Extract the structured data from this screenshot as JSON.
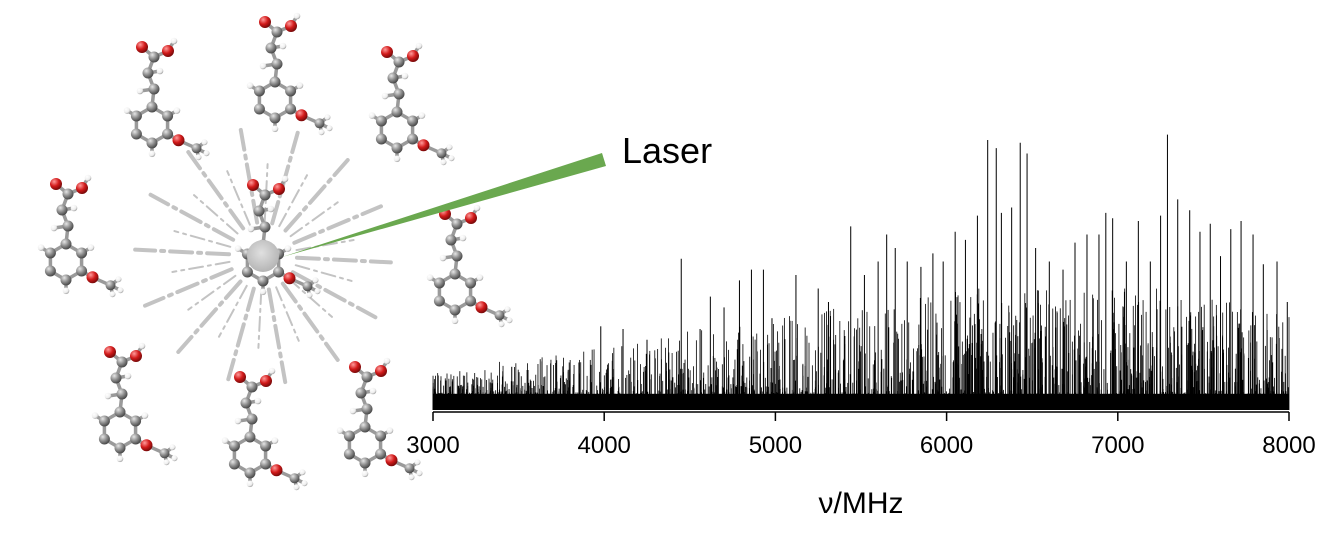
{
  "annotation": {
    "laser_label": "Laser"
  },
  "colors": {
    "carbon": "#8c8c8c",
    "hydrogen": "#f2f2f2",
    "oxygen": "#d21a1a",
    "laser_beam": "#6aa84f",
    "plume": "#bdbdbd",
    "spectrum": "#000000"
  },
  "molecule": {
    "name": "methoxycinnamic acid",
    "count_shown": 9
  },
  "chart_data": {
    "type": "line",
    "title": "",
    "xlabel": "ν/MHz",
    "ylabel": "",
    "xlim": [
      3000,
      8000
    ],
    "x_ticks": [
      3000,
      4000,
      5000,
      6000,
      7000,
      8000
    ],
    "x_tick_labels": [
      "3000",
      "4000",
      "5000",
      "6000",
      "7000",
      "8000"
    ],
    "y_axis_shown": false,
    "grid": false,
    "baseline_noise_level": 0.06,
    "strong_lines": {
      "x": [
        3460,
        3980,
        4110,
        4250,
        4450,
        4560,
        4620,
        4700,
        4790,
        4860,
        4930,
        4980,
        5120,
        5250,
        5310,
        5440,
        5520,
        5600,
        5650,
        5700,
        5770,
        5850,
        5920,
        5980,
        6050,
        6110,
        6180,
        6240,
        6290,
        6320,
        6380,
        6430,
        6470,
        6520,
        6600,
        6680,
        6750,
        6820,
        6890,
        6930,
        6970,
        7050,
        7120,
        7190,
        7250,
        7290,
        7350,
        7420,
        7480,
        7540,
        7600,
        7660,
        7720,
        7790,
        7850,
        7930,
        7990
      ],
      "y": [
        0.16,
        0.31,
        0.3,
        0.26,
        0.56,
        0.3,
        0.42,
        0.38,
        0.48,
        0.52,
        0.52,
        0.34,
        0.5,
        0.45,
        0.4,
        0.68,
        0.5,
        0.55,
        0.65,
        0.6,
        0.55,
        0.53,
        0.58,
        0.55,
        0.66,
        0.63,
        0.72,
        1.0,
        0.97,
        0.73,
        0.75,
        0.99,
        0.95,
        0.6,
        0.55,
        0.52,
        0.62,
        0.65,
        0.65,
        0.73,
        0.71,
        0.55,
        0.7,
        0.55,
        0.72,
        1.02,
        0.78,
        0.74,
        0.66,
        0.69,
        0.57,
        0.67,
        0.7,
        0.65,
        0.54,
        0.55,
        0.4
      ]
    }
  }
}
